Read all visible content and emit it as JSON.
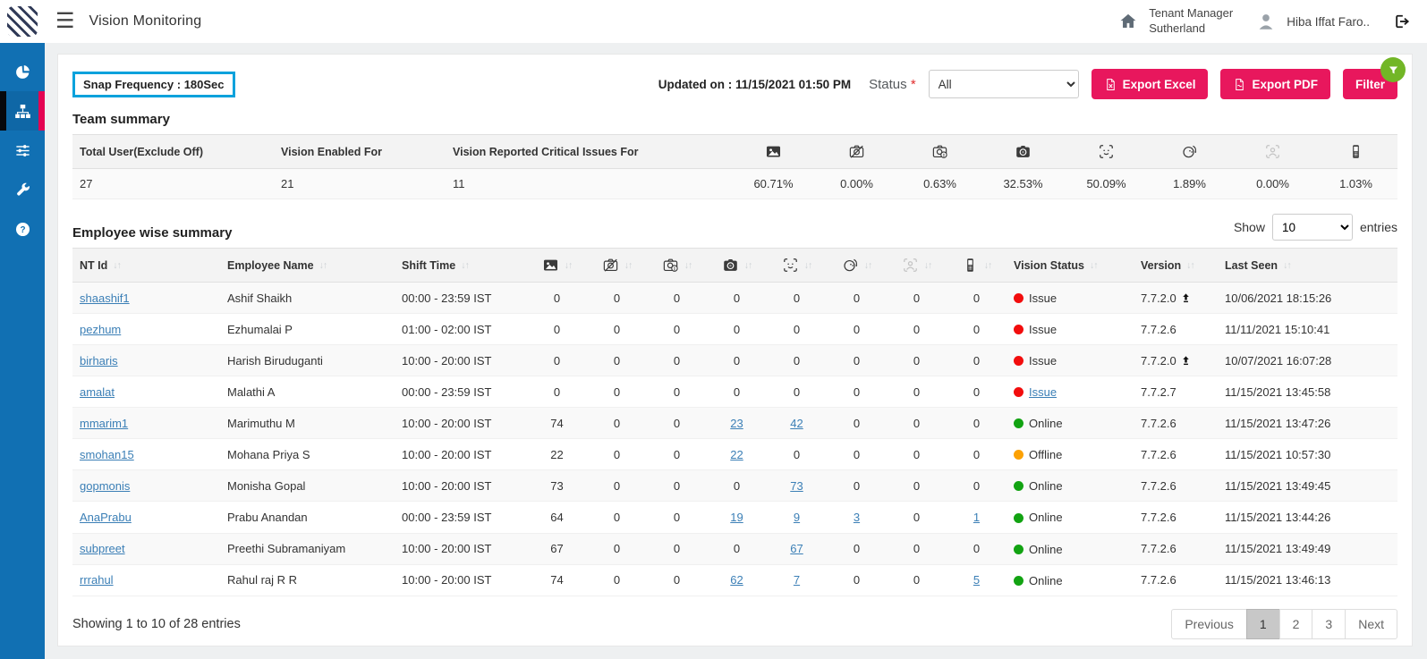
{
  "topbar": {
    "title": "Vision Monitoring",
    "tenant_line1": "Tenant Manager",
    "tenant_line2": "Sutherland",
    "user_name": "Hiba Iffat Faro..",
    "icons": {
      "menu": "menu-icon",
      "home": "home-icon",
      "avatar": "user-avatar-icon",
      "logout": "logout-icon"
    }
  },
  "sidebar": {
    "items": [
      {
        "id": "dashboard",
        "icon": "pie-chart-icon",
        "active": false
      },
      {
        "id": "vision-monitoring",
        "icon": "sitemap-icon",
        "active": true
      },
      {
        "id": "preferences",
        "icon": "sliders-icon",
        "active": false
      },
      {
        "id": "tools",
        "icon": "wrench-icon",
        "active": false
      },
      {
        "id": "help",
        "icon": "help-icon",
        "active": false
      }
    ]
  },
  "controls": {
    "snap_frequency": "Snap Frequency : 180Sec",
    "updated_on": "Updated on : 11/15/2021 01:50 PM",
    "status_label": "Status",
    "required_mark": "*",
    "status_value": "All",
    "export_excel_label": "Export Excel",
    "export_pdf_label": "Export PDF",
    "filter_label": "Filter"
  },
  "team_summary": {
    "title": "Team summary",
    "text_columns": [
      "Total User(Exclude Off)",
      "Vision Enabled For",
      "Vision Reported Critical Issues For"
    ],
    "text_values": [
      "27",
      "21",
      "11"
    ],
    "icon_columns": [
      "photo-icon",
      "camera-disabled-icon",
      "camera-issue-icon",
      "camera-blocked-icon",
      "face-scan-icon",
      "face-not-matched-icon",
      "multiple-person-icon",
      "mobile-detected-icon"
    ],
    "icon_values": [
      "60.71%",
      "0.00%",
      "0.63%",
      "32.53%",
      "50.09%",
      "1.89%",
      "0.00%",
      "1.03%"
    ]
  },
  "employee_summary": {
    "title": "Employee wise summary",
    "show_label": "Show",
    "entries_label": "entries",
    "page_size": "10",
    "text_headers": [
      "NT Id",
      "Employee Name",
      "Shift Time"
    ],
    "icon_headers": [
      "photo-icon",
      "camera-disabled-icon",
      "camera-issue-icon",
      "camera-blocked-icon",
      "face-scan-icon",
      "face-not-matched-icon",
      "multiple-person-icon",
      "mobile-detected-icon"
    ],
    "tail_headers": [
      "Vision Status",
      "Version",
      "Last Seen"
    ],
    "rows": [
      {
        "nt_id": "shaashif1",
        "name": "Ashif Shaikh",
        "shift": "00:00 - 23:59 IST",
        "metrics": [
          {
            "v": "0"
          },
          {
            "v": "0"
          },
          {
            "v": "0"
          },
          {
            "v": "0"
          },
          {
            "v": "0"
          },
          {
            "v": "0"
          },
          {
            "v": "0"
          },
          {
            "v": "0"
          }
        ],
        "status": {
          "label": "Issue",
          "link": false
        },
        "version": "7.7.2.0",
        "upgrade": true,
        "last_seen": "10/06/2021 18:15:26"
      },
      {
        "nt_id": "pezhum",
        "name": "Ezhumalai P",
        "shift": "01:00 - 02:00 IST",
        "metrics": [
          {
            "v": "0"
          },
          {
            "v": "0"
          },
          {
            "v": "0"
          },
          {
            "v": "0"
          },
          {
            "v": "0"
          },
          {
            "v": "0"
          },
          {
            "v": "0"
          },
          {
            "v": "0"
          }
        ],
        "status": {
          "label": "Issue",
          "link": false
        },
        "version": "7.7.2.6",
        "upgrade": false,
        "last_seen": "11/11/2021 15:10:41"
      },
      {
        "nt_id": "birharis",
        "name": "Harish Biruduganti",
        "shift": "10:00 - 20:00 IST",
        "metrics": [
          {
            "v": "0"
          },
          {
            "v": "0"
          },
          {
            "v": "0"
          },
          {
            "v": "0"
          },
          {
            "v": "0"
          },
          {
            "v": "0"
          },
          {
            "v": "0"
          },
          {
            "v": "0"
          }
        ],
        "status": {
          "label": "Issue",
          "link": false
        },
        "version": "7.7.2.0",
        "upgrade": true,
        "last_seen": "10/07/2021 16:07:28"
      },
      {
        "nt_id": "amalat",
        "name": "Malathi A",
        "shift": "00:00 - 23:59 IST",
        "metrics": [
          {
            "v": "0"
          },
          {
            "v": "0"
          },
          {
            "v": "0"
          },
          {
            "v": "0"
          },
          {
            "v": "0"
          },
          {
            "v": "0"
          },
          {
            "v": "0"
          },
          {
            "v": "0"
          }
        ],
        "status": {
          "label": "Issue",
          "link": true
        },
        "version": "7.7.2.7",
        "upgrade": false,
        "last_seen": "11/15/2021 13:45:58"
      },
      {
        "nt_id": "mmarim1",
        "name": "Marimuthu M",
        "shift": "10:00 - 20:00 IST",
        "metrics": [
          {
            "v": "74"
          },
          {
            "v": "0"
          },
          {
            "v": "0"
          },
          {
            "v": "23",
            "link": true
          },
          {
            "v": "42",
            "link": true
          },
          {
            "v": "0"
          },
          {
            "v": "0"
          },
          {
            "v": "0"
          }
        ],
        "status": {
          "label": "Online",
          "link": false
        },
        "version": "7.7.2.6",
        "upgrade": false,
        "last_seen": "11/15/2021 13:47:26"
      },
      {
        "nt_id": "smohan15",
        "name": "Mohana Priya S",
        "shift": "10:00 - 20:00 IST",
        "metrics": [
          {
            "v": "22"
          },
          {
            "v": "0"
          },
          {
            "v": "0"
          },
          {
            "v": "22",
            "link": true
          },
          {
            "v": "0"
          },
          {
            "v": "0"
          },
          {
            "v": "0"
          },
          {
            "v": "0"
          }
        ],
        "status": {
          "label": "Offline",
          "link": false
        },
        "version": "7.7.2.6",
        "upgrade": false,
        "last_seen": "11/15/2021 10:57:30"
      },
      {
        "nt_id": "gopmonis",
        "name": "Monisha Gopal",
        "shift": "10:00 - 20:00 IST",
        "metrics": [
          {
            "v": "73"
          },
          {
            "v": "0"
          },
          {
            "v": "0"
          },
          {
            "v": "0"
          },
          {
            "v": "73",
            "link": true
          },
          {
            "v": "0"
          },
          {
            "v": "0"
          },
          {
            "v": "0"
          }
        ],
        "status": {
          "label": "Online",
          "link": false
        },
        "version": "7.7.2.6",
        "upgrade": false,
        "last_seen": "11/15/2021 13:49:45"
      },
      {
        "nt_id": "AnaPrabu",
        "name": "Prabu Anandan",
        "shift": "00:00 - 23:59 IST",
        "metrics": [
          {
            "v": "64"
          },
          {
            "v": "0"
          },
          {
            "v": "0"
          },
          {
            "v": "19",
            "link": true
          },
          {
            "v": "9",
            "link": true
          },
          {
            "v": "3",
            "link": true
          },
          {
            "v": "0"
          },
          {
            "v": "1",
            "link": true
          }
        ],
        "status": {
          "label": "Online",
          "link": false
        },
        "version": "7.7.2.6",
        "upgrade": false,
        "last_seen": "11/15/2021 13:44:26"
      },
      {
        "nt_id": "subpreet",
        "name": "Preethi Subramaniyam",
        "shift": "10:00 - 20:00 IST",
        "metrics": [
          {
            "v": "67"
          },
          {
            "v": "0"
          },
          {
            "v": "0"
          },
          {
            "v": "0"
          },
          {
            "v": "67",
            "link": true
          },
          {
            "v": "0"
          },
          {
            "v": "0"
          },
          {
            "v": "0"
          }
        ],
        "status": {
          "label": "Online",
          "link": false
        },
        "version": "7.7.2.6",
        "upgrade": false,
        "last_seen": "11/15/2021 13:49:49"
      },
      {
        "nt_id": "rrrahul",
        "name": "Rahul raj R R",
        "shift": "10:00 - 20:00 IST",
        "metrics": [
          {
            "v": "74"
          },
          {
            "v": "0"
          },
          {
            "v": "0"
          },
          {
            "v": "62",
            "link": true
          },
          {
            "v": "7",
            "link": true
          },
          {
            "v": "0"
          },
          {
            "v": "0"
          },
          {
            "v": "5",
            "link": true
          }
        ],
        "status": {
          "label": "Online",
          "link": false
        },
        "version": "7.7.2.6",
        "upgrade": false,
        "last_seen": "11/15/2021 13:46:13"
      }
    ]
  },
  "footer": {
    "showing": "Showing 1 to 10 of 28 entries",
    "previous_label": "Previous",
    "pages": [
      "1",
      "2",
      "3"
    ],
    "active_page": "1",
    "next_label": "Next"
  },
  "colors": {
    "sidebar_blue": "#1170b3",
    "active_strip_crimson": "#e40352",
    "button_crimson": "#e8175d",
    "snap_border_blue": "#0aa2dc",
    "filter_badge_green": "#72b626",
    "link_blue": "#3b7fb6",
    "status": {
      "Issue": "#f20d0d",
      "Online": "#12a312",
      "Offline": "#fca103"
    }
  }
}
